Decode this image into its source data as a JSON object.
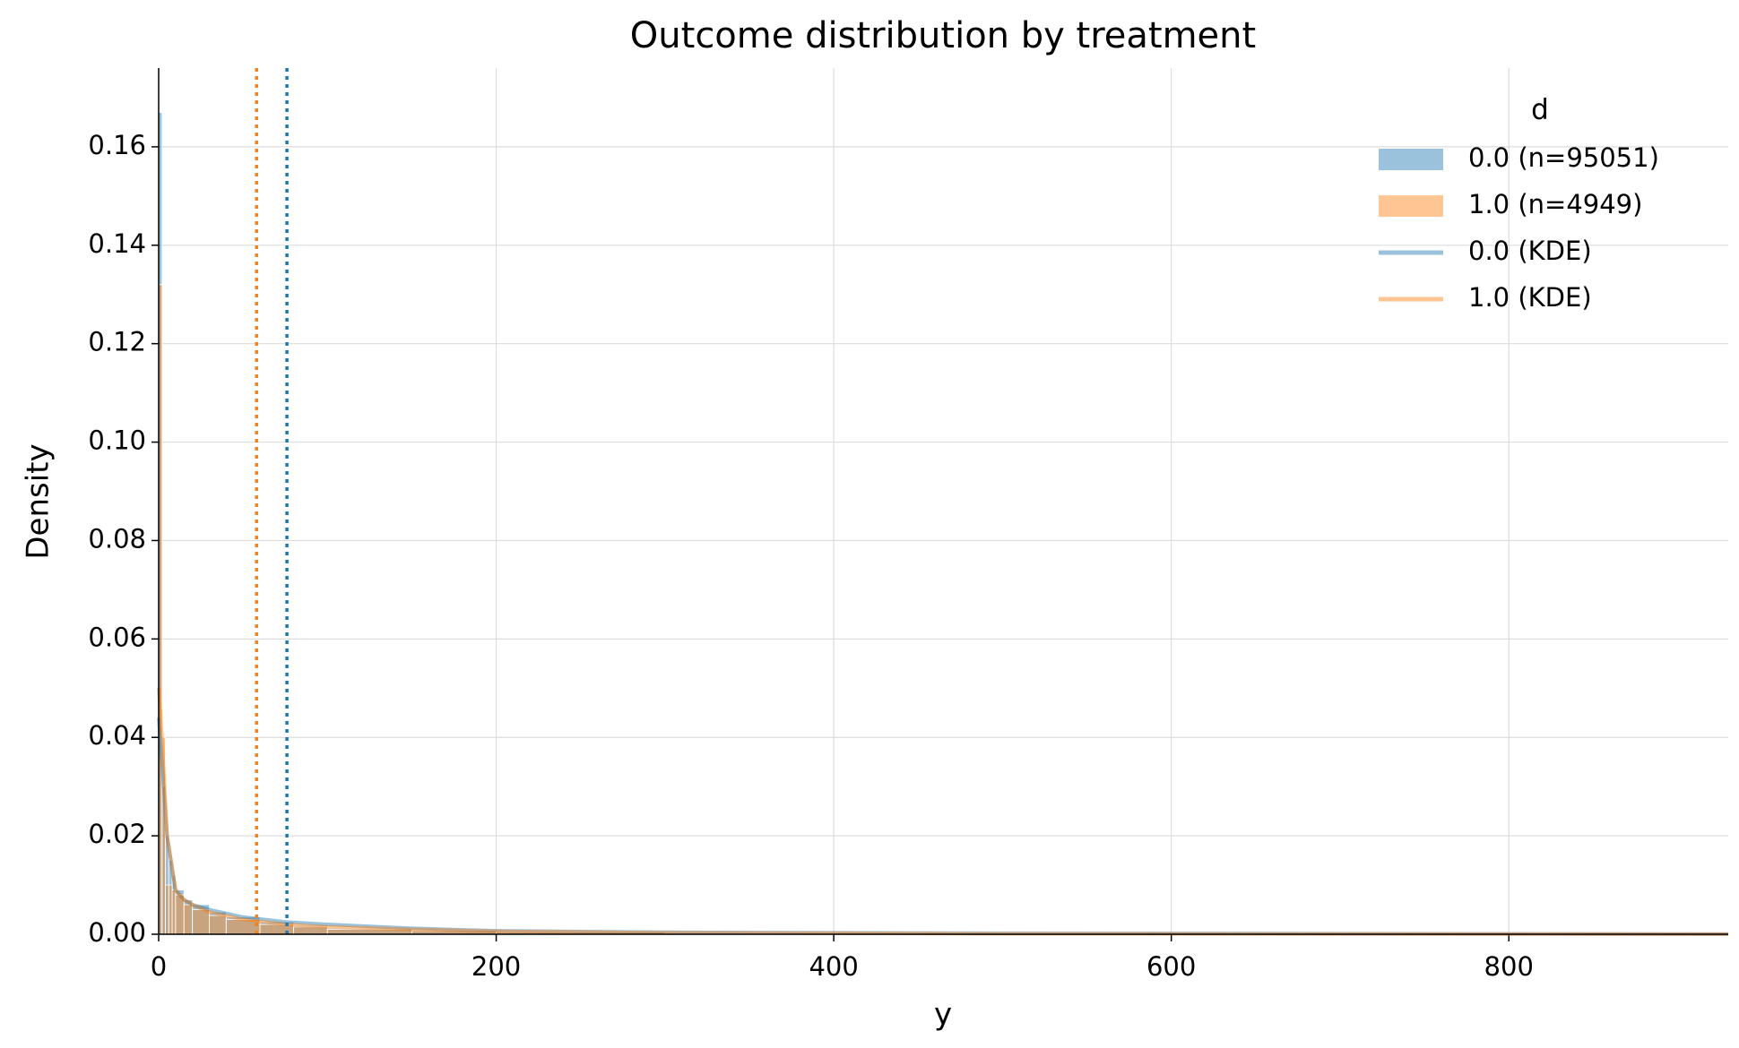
{
  "chart_data": {
    "type": "histogram",
    "title": "Outcome distribution by treatment",
    "xlabel": "y",
    "ylabel": "Density",
    "xlim": [
      0,
      930
    ],
    "ylim": [
      0,
      0.176
    ],
    "xticks": [
      0,
      200,
      400,
      600,
      800
    ],
    "yticks": [
      {
        "value": 0,
        "label": "0.00"
      },
      {
        "value": 0.02,
        "label": "0.02"
      },
      {
        "value": 0.04,
        "label": "0.04"
      },
      {
        "value": 0.06,
        "label": "0.06"
      },
      {
        "value": 0.08,
        "label": "0.08"
      },
      {
        "value": 0.1,
        "label": "0.10"
      },
      {
        "value": 0.12,
        "label": "0.12"
      },
      {
        "value": 0.14,
        "label": "0.14"
      },
      {
        "value": 0.16,
        "label": "0.16"
      }
    ],
    "grid": true,
    "legend_title": "d",
    "legend": "upper right",
    "series": [
      {
        "name": "0.0 (n=95051)",
        "color": "#1f77b4",
        "bins": [
          0,
          2,
          4,
          6,
          8,
          10,
          15,
          20,
          30,
          40,
          60,
          80,
          100,
          150,
          200,
          300,
          500,
          930
        ],
        "values": [
          0.167,
          0.03,
          0.02,
          0.015,
          0.012,
          0.009,
          0.007,
          0.006,
          0.0045,
          0.0035,
          0.0025,
          0.0018,
          0.0012,
          0.0008,
          0.0004,
          0.0002,
          5e-05
        ]
      },
      {
        "name": "1.0 (n=4949)",
        "color": "#ff7f0e",
        "bins": [
          0,
          2,
          4,
          6,
          8,
          10,
          15,
          20,
          30,
          40,
          60,
          80,
          100,
          150,
          200,
          300,
          500,
          930
        ],
        "values": [
          0.132,
          0.04,
          0.01,
          0.01,
          0.009,
          0.008,
          0.006,
          0.005,
          0.0038,
          0.003,
          0.002,
          0.0015,
          0.001,
          0.0007,
          0.0004,
          0.00015,
          4e-05
        ]
      }
    ],
    "kde": [
      {
        "name": "0.0 (KDE)",
        "color": "#1f77b4",
        "x": [
          0,
          2,
          5,
          10,
          15,
          20,
          30,
          50,
          75,
          100,
          150,
          200,
          300,
          500,
          930
        ],
        "values": [
          0.044,
          0.035,
          0.02,
          0.009,
          0.007,
          0.006,
          0.005,
          0.0035,
          0.0025,
          0.002,
          0.0012,
          0.0007,
          0.0004,
          0.0002,
          5e-05
        ]
      },
      {
        "name": "1.0 (KDE)",
        "color": "#ff7f0e",
        "x": [
          0,
          2,
          5,
          10,
          15,
          20,
          30,
          50,
          75,
          100,
          150,
          200,
          300,
          500,
          930
        ],
        "values": [
          0.05,
          0.04,
          0.02,
          0.009,
          0.007,
          0.006,
          0.0045,
          0.003,
          0.002,
          0.0015,
          0.001,
          0.0006,
          0.0003,
          0.0001,
          3e-05
        ]
      }
    ],
    "means": [
      {
        "value": 76,
        "color": "#1f77b4"
      },
      {
        "value": 58,
        "color": "#ff7f0e"
      }
    ]
  }
}
